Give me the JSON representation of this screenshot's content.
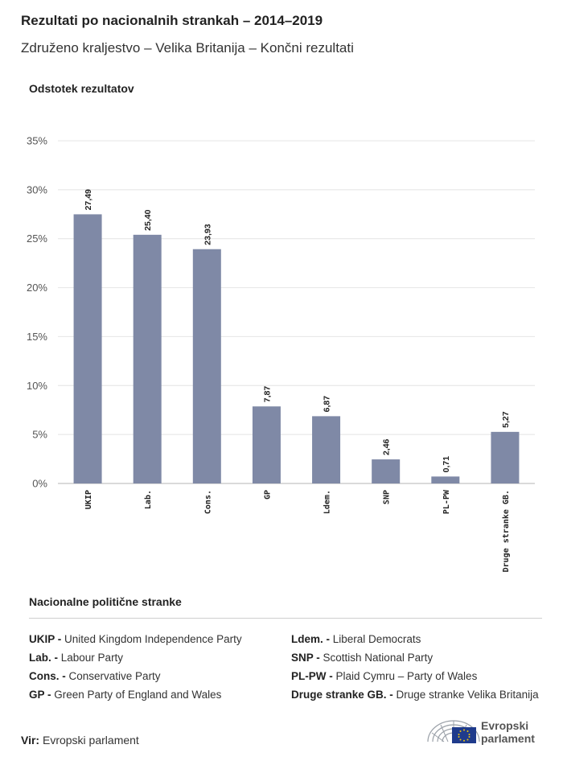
{
  "title": "Rezultati po nacionalnih strankah – 2014–2019",
  "subtitle": "Združeno kraljestvo – Velika Britanija – Končni rezultati",
  "chart_data": {
    "type": "bar",
    "ylabel": "Odstotek rezultatov",
    "xlabel": "",
    "ylim": [
      0,
      35
    ],
    "yticks": [
      "0%",
      "5%",
      "10%",
      "15%",
      "20%",
      "25%",
      "30%",
      "35%"
    ],
    "grid": true,
    "categories": [
      "UKIP",
      "Lab.",
      "Cons.",
      "GP",
      "Ldem.",
      "SNP",
      "PL-PW",
      "Druge stranke GB."
    ],
    "values": [
      27.49,
      25.4,
      23.93,
      7.87,
      6.87,
      2.46,
      0.71,
      5.27
    ],
    "value_labels": [
      "27,49",
      "25,40",
      "23,93",
      "7,87",
      "6,87",
      "2,46",
      "0,71",
      "5,27"
    ],
    "bar_color": "#7f89a6"
  },
  "legend": {
    "title": "Nacionalne politične stranke",
    "left": [
      {
        "abbr": "UKIP -",
        "name": "United Kingdom Independence Party"
      },
      {
        "abbr": "Lab. -",
        "name": "Labour Party"
      },
      {
        "abbr": "Cons. -",
        "name": "Conservative Party"
      },
      {
        "abbr": "GP -",
        "name": "Green Party of England and Wales"
      }
    ],
    "right": [
      {
        "abbr": "Ldem. -",
        "name": "Liberal Democrats"
      },
      {
        "abbr": "SNP -",
        "name": "Scottish National Party"
      },
      {
        "abbr": "PL-PW -",
        "name": "Plaid Cymru – Party of Wales"
      },
      {
        "abbr": "Druge stranke GB. -",
        "name": "Druge stranke Velika Britanija"
      }
    ]
  },
  "source": {
    "label": "Vir:",
    "text": "Evropski parlament"
  },
  "logo": {
    "line1": "Evropski",
    "line2": "parlament",
    "icon": "european-parliament-hemicycle-icon"
  }
}
